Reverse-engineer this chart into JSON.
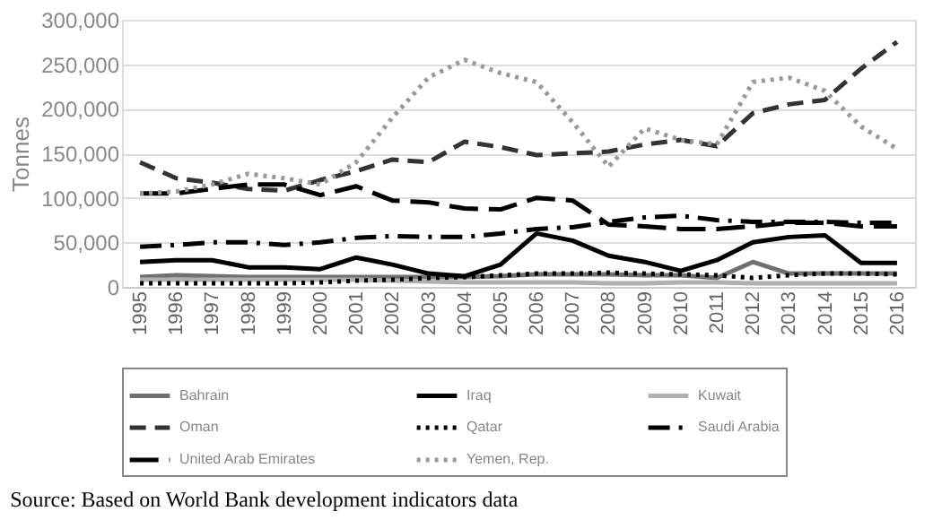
{
  "chart_data": {
    "type": "line",
    "ylabel": "Tonnes",
    "categories": [
      "1995",
      "1996",
      "1997",
      "1998",
      "1999",
      "2000",
      "2001",
      "2002",
      "2003",
      "2004",
      "2005",
      "2006",
      "2007",
      "2008",
      "2009",
      "2010",
      "2011",
      "2012",
      "2013",
      "2014",
      "2015",
      "2016"
    ],
    "series": [
      {
        "name": "Bahrain",
        "color": "#707070",
        "line_style": "solid",
        "values": [
          11000,
          13000,
          12000,
          11000,
          11000,
          11000,
          11000,
          11000,
          11000,
          11000,
          12000,
          14000,
          14000,
          14000,
          13000,
          13000,
          10000,
          28000,
          15000,
          15000,
          15000,
          15000
        ]
      },
      {
        "name": "Iraq",
        "color": "#000000",
        "line_style": "solid",
        "values": [
          28000,
          30000,
          30000,
          22000,
          22000,
          20000,
          33000,
          25000,
          15000,
          12000,
          25000,
          60000,
          52000,
          35000,
          28000,
          18000,
          30000,
          50000,
          56000,
          58000,
          27000,
          27000
        ]
      },
      {
        "name": "Kuwait",
        "color": "#b0b0b0",
        "line_style": "solid",
        "values": [
          8000,
          8000,
          8000,
          8000,
          8000,
          8000,
          8000,
          7000,
          6000,
          5000,
          5000,
          5000,
          5000,
          4000,
          4000,
          5000,
          5000,
          4000,
          4000,
          4000,
          4000,
          4000
        ]
      },
      {
        "name": "Oman",
        "color": "#333333",
        "line_style": "dashed",
        "values": [
          140000,
          122000,
          117000,
          110000,
          108000,
          120000,
          130000,
          143000,
          140000,
          163000,
          157000,
          148000,
          150000,
          152000,
          160000,
          165000,
          158000,
          195000,
          205000,
          210000,
          245000,
          275000
        ]
      },
      {
        "name": "Qatar",
        "color": "#000000",
        "line_style": "dotted",
        "values": [
          4000,
          4000,
          4000,
          4000,
          4000,
          5000,
          7000,
          8000,
          10000,
          11000,
          13000,
          15000,
          15000,
          16000,
          15000,
          14000,
          13000,
          10000,
          13000,
          15000,
          15000,
          14000
        ]
      },
      {
        "name": "Saudi Arabia",
        "color": "#000000",
        "line_style": "dashdot",
        "values": [
          45000,
          47000,
          50000,
          50000,
          47000,
          50000,
          55000,
          57000,
          56000,
          56000,
          60000,
          65000,
          67000,
          73000,
          78000,
          80000,
          75000,
          73000,
          73000,
          73000,
          72000,
          72000
        ]
      },
      {
        "name": "United Arab Emirates",
        "color": "#000000",
        "line_style": "longdash",
        "values": [
          105000,
          105000,
          110000,
          115000,
          115000,
          103000,
          113000,
          97000,
          95000,
          88000,
          87000,
          100000,
          97000,
          70000,
          68000,
          65000,
          65000,
          68000,
          72000,
          72000,
          68000,
          68000
        ]
      },
      {
        "name": "Yemen, Rep.",
        "color": "#999999",
        "line_style": "dotted",
        "values": [
          105000,
          107000,
          115000,
          127000,
          122000,
          115000,
          140000,
          190000,
          235000,
          255000,
          240000,
          230000,
          185000,
          135000,
          178000,
          165000,
          160000,
          230000,
          235000,
          220000,
          180000,
          155000
        ]
      }
    ],
    "ylim": [
      0,
      300000
    ],
    "yticks": [
      0,
      {
        "value": 50000,
        "label": "50,000"
      },
      {
        "value": 100000,
        "label": "100,000"
      },
      {
        "value": 150000,
        "label": "150,000"
      },
      {
        "value": 200000,
        "label": "200,000"
      },
      {
        "value": 250000,
        "label": "250,000"
      },
      {
        "value": 300000,
        "label": "300,000"
      }
    ],
    "grid": "y",
    "legend": "bottom",
    "annotations": [
      "Source: Based on World Bank development indicators data"
    ]
  }
}
